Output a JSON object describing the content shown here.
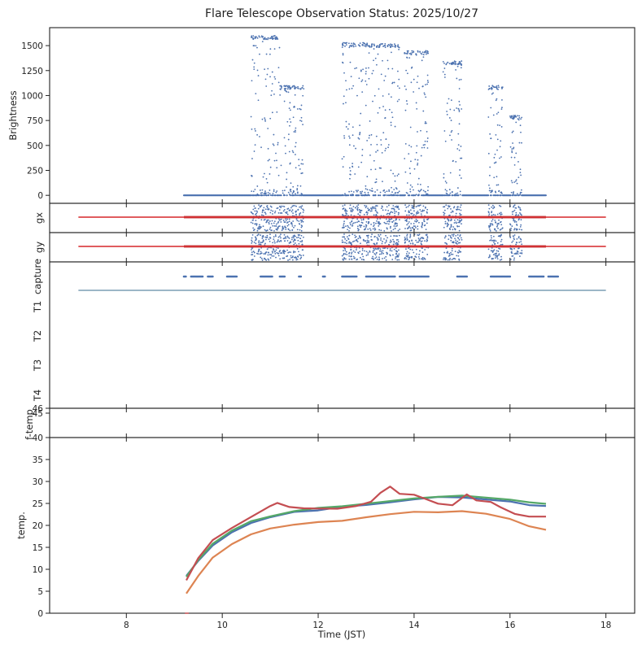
{
  "chart_data": {
    "title": "Flare Telescope Observation Status: 2025/10/27",
    "xlabel": "Time (JST)",
    "xlim": [
      6.4,
      18.6
    ],
    "xticks": [
      8,
      10,
      12,
      14,
      16,
      18
    ],
    "colors": {
      "blue": "#4c72b0",
      "red": "#d62728",
      "darkred": "#c44e52",
      "green": "#55a868",
      "orange": "#dd8452",
      "teal": "#3a6e8f"
    },
    "panels": [
      {
        "id": "brightness",
        "type": "scatter",
        "ylabel": "Brightness",
        "ylim": [
          -80,
          1680
        ],
        "yticks": [
          0,
          250,
          500,
          750,
          1000,
          1250,
          1500
        ],
        "baseline": {
          "x_start": 9.2,
          "x_end": 16.75,
          "y": 0
        },
        "bursts": [
          {
            "x_start": 10.6,
            "x_end": 11.2,
            "max": 1600
          },
          {
            "x_start": 11.2,
            "x_end": 11.7,
            "max": 1100
          },
          {
            "x_start": 12.5,
            "x_end": 13.05,
            "max": 1530
          },
          {
            "x_start": 13.05,
            "x_end": 13.7,
            "max": 1520
          },
          {
            "x_start": 13.8,
            "x_end": 14.3,
            "max": 1450
          },
          {
            "x_start": 14.6,
            "x_end": 15.0,
            "max": 1350
          },
          {
            "x_start": 15.55,
            "x_end": 15.85,
            "max": 1100
          },
          {
            "x_start": 16.0,
            "x_end": 16.25,
            "max": 800
          }
        ]
      },
      {
        "id": "gx",
        "type": "line+scatter",
        "ylabel": "gx",
        "reference_line": {
          "x_start": 7.0,
          "x_end": 18.0
        },
        "data_span": [
          9.2,
          16.75
        ]
      },
      {
        "id": "gy",
        "type": "line+scatter",
        "ylabel": "gy",
        "reference_line": {
          "x_start": 7.0,
          "x_end": 18.0
        },
        "data_span": [
          9.2,
          16.75
        ]
      },
      {
        "id": "status",
        "type": "event",
        "ylabels": [
          "capture",
          "T1",
          "T2",
          "T3",
          "T4"
        ],
        "capture_segments": [
          [
            9.2,
            9.25
          ],
          [
            9.35,
            9.6
          ],
          [
            9.7,
            9.8
          ],
          [
            10.1,
            10.3
          ],
          [
            10.8,
            11.05
          ],
          [
            11.2,
            11.3
          ],
          [
            11.6,
            11.65
          ],
          [
            12.1,
            12.15
          ],
          [
            12.5,
            12.8
          ],
          [
            13.0,
            13.6
          ],
          [
            13.7,
            14.3
          ],
          [
            14.9,
            15.1
          ],
          [
            15.6,
            16.0
          ],
          [
            16.4,
            16.7
          ],
          [
            16.8,
            17.0
          ]
        ],
        "t1_span": [
          7.0,
          18.0
        ]
      },
      {
        "id": "ftemp",
        "type": "line",
        "ylabel": "f-temp",
        "ylim": [
          40,
          46
        ],
        "yticks": [
          40,
          45,
          46
        ]
      },
      {
        "id": "temp",
        "type": "line",
        "ylabel": "temp.",
        "ylim": [
          0,
          40
        ],
        "yticks": [
          0,
          5,
          10,
          15,
          20,
          25,
          30,
          35,
          40
        ],
        "series": [
          {
            "name": "blue",
            "points": [
              [
                9.25,
                8.5
              ],
              [
                9.5,
                12
              ],
              [
                9.8,
                15.5
              ],
              [
                10.2,
                18.5
              ],
              [
                10.6,
                20.5
              ],
              [
                11.0,
                21.8
              ],
              [
                11.5,
                23.0
              ],
              [
                12.0,
                23.6
              ],
              [
                12.5,
                24.2
              ],
              [
                13.0,
                24.8
              ],
              [
                13.5,
                25.3
              ],
              [
                14.0,
                26.0
              ],
              [
                14.5,
                26.3
              ],
              [
                15.0,
                26.4
              ],
              [
                15.5,
                26.0
              ],
              [
                16.0,
                25.4
              ],
              [
                16.4,
                24.8
              ],
              [
                16.75,
                24.4
              ]
            ]
          },
          {
            "name": "green",
            "points": [
              [
                9.25,
                8.3
              ],
              [
                9.5,
                12.3
              ],
              [
                9.8,
                16.0
              ],
              [
                10.2,
                19.0
              ],
              [
                10.6,
                21.0
              ],
              [
                11.0,
                22.2
              ],
              [
                11.5,
                23.3
              ],
              [
                12.0,
                23.9
              ],
              [
                12.5,
                24.5
              ],
              [
                13.0,
                25.0
              ],
              [
                13.5,
                25.6
              ],
              [
                14.0,
                26.3
              ],
              [
                14.5,
                26.6
              ],
              [
                15.0,
                26.8
              ],
              [
                15.5,
                26.5
              ],
              [
                16.0,
                26.0
              ],
              [
                16.4,
                25.4
              ],
              [
                16.75,
                24.9
              ]
            ]
          },
          {
            "name": "orange",
            "points": [
              [
                9.25,
                4.5
              ],
              [
                9.5,
                8.5
              ],
              [
                9.8,
                12.5
              ],
              [
                10.2,
                15.8
              ],
              [
                10.6,
                18.0
              ],
              [
                11.0,
                19.3
              ],
              [
                11.5,
                20.3
              ],
              [
                12.0,
                20.8
              ],
              [
                12.5,
                21.2
              ],
              [
                13.0,
                21.8
              ],
              [
                13.5,
                22.5
              ],
              [
                14.0,
                23.2
              ],
              [
                14.5,
                23.0
              ],
              [
                15.0,
                23.2
              ],
              [
                15.5,
                22.8
              ],
              [
                16.0,
                21.3
              ],
              [
                16.4,
                19.9
              ],
              [
                16.75,
                19.0
              ]
            ]
          },
          {
            "name": "darkred",
            "points": [
              [
                9.25,
                7.5
              ],
              [
                9.5,
                12.5
              ],
              [
                9.8,
                16.5
              ],
              [
                10.2,
                19.5
              ],
              [
                10.6,
                21.8
              ],
              [
                11.0,
                24.5
              ],
              [
                11.15,
                25.3
              ],
              [
                11.4,
                24.3
              ],
              [
                11.7,
                23.7
              ],
              [
                12.0,
                24.0
              ],
              [
                12.4,
                23.7
              ],
              [
                12.8,
                24.5
              ],
              [
                13.1,
                25.5
              ],
              [
                13.3,
                27.5
              ],
              [
                13.5,
                29.0
              ],
              [
                13.7,
                27.3
              ],
              [
                14.0,
                27.0
              ],
              [
                14.2,
                26.3
              ],
              [
                14.5,
                25.0
              ],
              [
                14.8,
                24.5
              ],
              [
                15.1,
                27.0
              ],
              [
                15.3,
                25.5
              ],
              [
                15.6,
                25.2
              ],
              [
                15.8,
                24.0
              ],
              [
                16.1,
                22.5
              ],
              [
                16.4,
                22.1
              ],
              [
                16.75,
                22.0
              ]
            ]
          }
        ]
      }
    ]
  }
}
